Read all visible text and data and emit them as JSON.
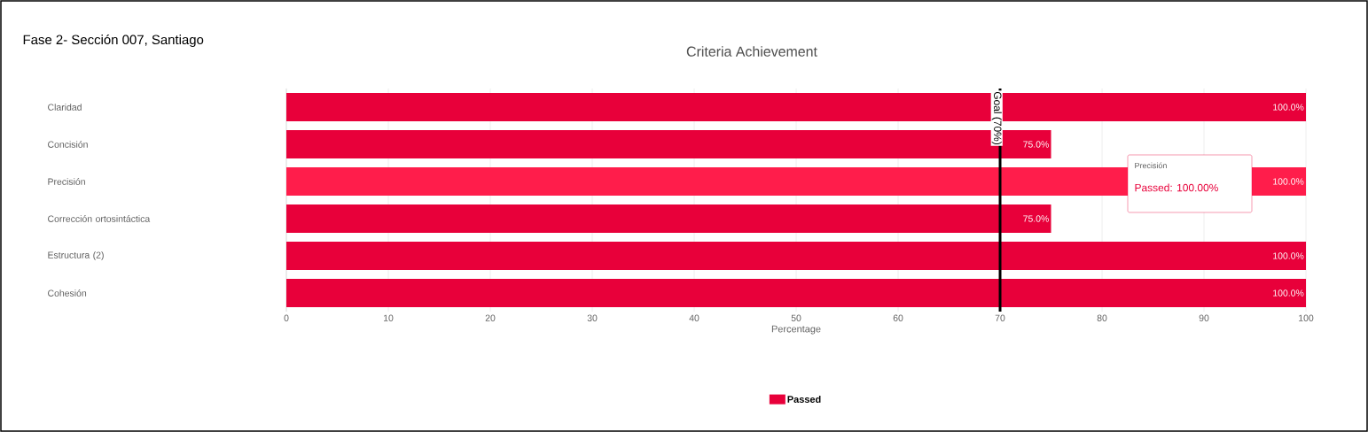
{
  "chart_data": {
    "type": "bar",
    "orientation": "horizontal",
    "title": "Criteria Achievement",
    "xlabel": "Percentage",
    "annotations": [
      "Fase 2- Sección 007, Santiago",
      "Precisión",
      "Passed: 100.00%"
    ],
    "categories": [
      "Claridad",
      "Concisión",
      "Precisión",
      "Corrección ortosintáctica",
      "Estructura (2)",
      "Cohesión"
    ],
    "series": [
      {
        "name": "Passed",
        "color": "#e8003a",
        "colors": [
          "#e8003a",
          "#e8003a",
          "#ff1d4b",
          "#e8003a",
          "#e8003a",
          "#e8003a"
        ],
        "values": [
          100,
          75,
          100,
          75,
          100,
          100
        ],
        "value_labels": [
          "100.0%",
          "75.0%",
          "100.0%",
          "75.0%",
          "100.0%",
          "100.0%"
        ]
      }
    ],
    "xlim": [
      0,
      100
    ],
    "xticks": [
      0,
      10,
      20,
      30,
      40,
      50,
      60,
      70,
      80,
      90,
      100
    ],
    "ref_lines": [
      {
        "axis": "x",
        "value": 70,
        "label": "Goal (70%)",
        "color": "#000000"
      }
    ],
    "grid": "x",
    "legend": "bottom"
  }
}
